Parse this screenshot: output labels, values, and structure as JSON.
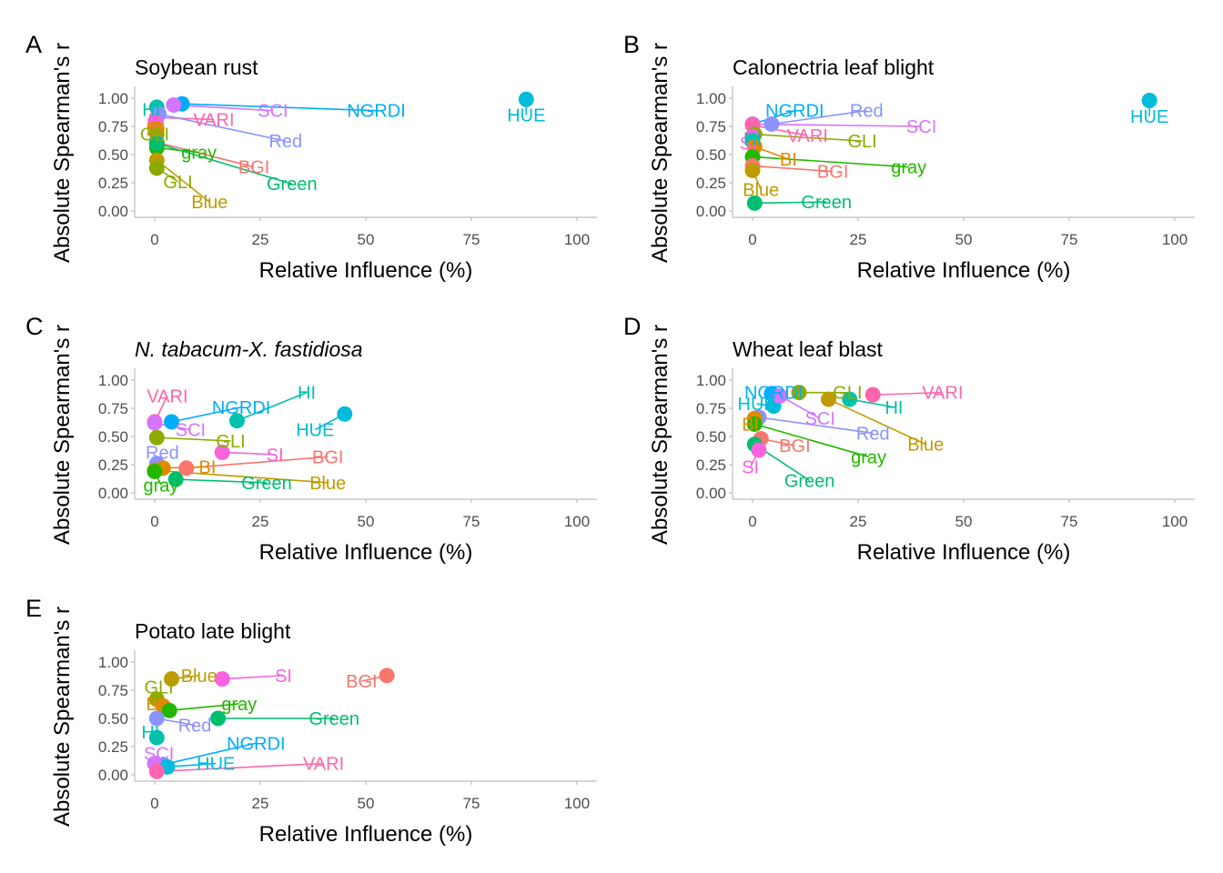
{
  "figure": {
    "xlabel": "Relative Influence (%)",
    "ylabel": "Absolute Spearman's r"
  },
  "palette": {
    "BGI": "#F8766D",
    "BI": "#E18A00",
    "Blue": "#BE9C00",
    "GLI": "#8CAB00",
    "gray": "#24B700",
    "Green": "#00BE70",
    "HI": "#00C1AB",
    "HUE": "#00BBDA",
    "NGRDI": "#00ACFC",
    "Red": "#8B93FF",
    "SCI": "#D575FE",
    "SI": "#F962DD",
    "VARI": "#FF65AC"
  },
  "chart_data": [
    {
      "panel": "A",
      "title": "Soybean rust",
      "italic": false,
      "type": "scatter",
      "xlabel": "Relative Influence (%)",
      "ylabel": "Absolute Spearman's r",
      "xlim": [
        0,
        100
      ],
      "ylim": [
        0,
        1
      ],
      "xticks": [
        "0",
        "25",
        "50",
        "75",
        "100"
      ],
      "yticks": [
        "0.00",
        "0.25",
        "0.50",
        "0.75",
        "1.00"
      ],
      "points": [
        {
          "label": "HUE",
          "x": 88.0,
          "y": 0.99,
          "lx": 88.0,
          "ly": 0.85
        },
        {
          "label": "NGRDI",
          "x": 6.5,
          "y": 0.95,
          "lx": 52.5,
          "ly": 0.89
        },
        {
          "label": "SCI",
          "x": 4.5,
          "y": 0.94,
          "lx": 28.0,
          "ly": 0.89
        },
        {
          "label": "HI",
          "x": 0.5,
          "y": 0.92,
          "lx": -0.8,
          "ly": 0.9
        },
        {
          "label": "VARI",
          "x": 0.5,
          "y": 0.83,
          "lx": 14.0,
          "ly": 0.81
        },
        {
          "label": "Red",
          "x": 1.0,
          "y": 0.86,
          "lx": 31.0,
          "ly": 0.62
        },
        {
          "label": "SI",
          "x": 0.3,
          "y": 0.78,
          "lx": 0.0,
          "ly": 0.78
        },
        {
          "label": "BI",
          "x": 0.5,
          "y": 0.73,
          "lx": 0.0,
          "ly": 0.73
        },
        {
          "label": "GLI",
          "x": 0.5,
          "y": 0.68,
          "lx": 0.0,
          "ly": 0.68
        },
        {
          "label": "BGI",
          "x": 0.5,
          "y": 0.61,
          "lx": 23.5,
          "ly": 0.39
        },
        {
          "label": "gray",
          "x": 0.5,
          "y": 0.56,
          "lx": 10.5,
          "ly": 0.52
        },
        {
          "label": "Green",
          "x": 0.5,
          "y": 0.6,
          "lx": 32.5,
          "ly": 0.24
        },
        {
          "label": "Blue",
          "x": 0.5,
          "y": 0.45,
          "lx": 13.0,
          "ly": 0.08
        },
        {
          "label": "GLI",
          "x": 0.5,
          "y": 0.38,
          "lx": 5.5,
          "ly": 0.26
        }
      ]
    },
    {
      "panel": "B",
      "title": "Calonectria leaf blight",
      "italic": false,
      "type": "scatter",
      "xlabel": "Relative Influence (%)",
      "ylabel": "Absolute Spearman's r",
      "xlim": [
        0,
        100
      ],
      "ylim": [
        0,
        1
      ],
      "xticks": [
        "0",
        "25",
        "50",
        "75",
        "100"
      ],
      "yticks": [
        "0.00",
        "0.25",
        "0.50",
        "0.75",
        "1.00"
      ],
      "points": [
        {
          "label": "HUE",
          "x": 94.0,
          "y": 0.98,
          "lx": 94.0,
          "ly": 0.84
        },
        {
          "label": "NGRDI",
          "x": 0.0,
          "y": 0.77,
          "lx": 10.0,
          "ly": 0.89
        },
        {
          "label": "Red",
          "x": 4.5,
          "y": 0.77,
          "lx": 27.0,
          "ly": 0.89
        },
        {
          "label": "SCI",
          "x": 0.0,
          "y": 0.77,
          "lx": 40.0,
          "ly": 0.75
        },
        {
          "label": "VARI",
          "x": 0.0,
          "y": 0.76,
          "lx": 13.0,
          "ly": 0.67
        },
        {
          "label": "GLI",
          "x": 0.5,
          "y": 0.68,
          "lx": 26.0,
          "ly": 0.62
        },
        {
          "label": "SI",
          "x": 0.0,
          "y": 0.66,
          "lx": -1.0,
          "ly": 0.6
        },
        {
          "label": "HI",
          "x": 0.0,
          "y": 0.62,
          "lx": 0.0,
          "ly": 0.64
        },
        {
          "label": "BI",
          "x": 0.5,
          "y": 0.57,
          "lx": 8.5,
          "ly": 0.46
        },
        {
          "label": "gray",
          "x": 0.0,
          "y": 0.48,
          "lx": 37.0,
          "ly": 0.39
        },
        {
          "label": "BGI",
          "x": 0.0,
          "y": 0.4,
          "lx": 19.0,
          "ly": 0.35
        },
        {
          "label": "Blue",
          "x": 0.0,
          "y": 0.36,
          "lx": 2.0,
          "ly": 0.19
        },
        {
          "label": "Green",
          "x": 0.5,
          "y": 0.07,
          "lx": 17.5,
          "ly": 0.08
        }
      ]
    },
    {
      "panel": "C",
      "title": "N. tabacum-X. fastidiosa",
      "italic": true,
      "type": "scatter",
      "xlabel": "Relative Influence (%)",
      "ylabel": "Absolute Spearman's r",
      "xlim": [
        0,
        100
      ],
      "ylim": [
        0,
        1
      ],
      "xticks": [
        "0",
        "25",
        "50",
        "75",
        "100"
      ],
      "yticks": [
        "0.00",
        "0.25",
        "0.50",
        "0.75",
        "1.00"
      ],
      "points": [
        {
          "label": "HUE",
          "x": 45.0,
          "y": 0.7,
          "lx": 38.0,
          "ly": 0.56
        },
        {
          "label": "HI",
          "x": 19.5,
          "y": 0.64,
          "lx": 36.0,
          "ly": 0.89
        },
        {
          "label": "NGRDI",
          "x": 4.0,
          "y": 0.63,
          "lx": 20.5,
          "ly": 0.76
        },
        {
          "label": "VARI",
          "x": 0.0,
          "y": 0.63,
          "lx": 3.0,
          "ly": 0.86
        },
        {
          "label": "SCI",
          "x": 0.0,
          "y": 0.62,
          "lx": 8.5,
          "ly": 0.56
        },
        {
          "label": "GLI",
          "x": 0.5,
          "y": 0.49,
          "lx": 18.0,
          "ly": 0.46
        },
        {
          "label": "SI",
          "x": 16.0,
          "y": 0.36,
          "lx": 28.5,
          "ly": 0.34
        },
        {
          "label": "BGI",
          "x": 7.5,
          "y": 0.22,
          "lx": 41.0,
          "ly": 0.32
        },
        {
          "label": "Red",
          "x": 0.5,
          "y": 0.26,
          "lx": 1.8,
          "ly": 0.36
        },
        {
          "label": "BI",
          "x": 2.0,
          "y": 0.22,
          "lx": 12.5,
          "ly": 0.23
        },
        {
          "label": "Blue",
          "x": 0.0,
          "y": 0.2,
          "lx": 41.0,
          "ly": 0.09
        },
        {
          "label": "Green",
          "x": 5.0,
          "y": 0.12,
          "lx": 26.5,
          "ly": 0.09
        },
        {
          "label": "gray",
          "x": 0.0,
          "y": 0.19,
          "lx": 1.5,
          "ly": 0.07
        }
      ]
    },
    {
      "panel": "D",
      "title": "Wheat leaf blast",
      "italic": false,
      "type": "scatter",
      "xlabel": "Relative Influence (%)",
      "ylabel": "Absolute Spearman's r",
      "xlim": [
        0,
        100
      ],
      "ylim": [
        0,
        1
      ],
      "xticks": [
        "0",
        "25",
        "50",
        "75",
        "100"
      ],
      "yticks": [
        "0.00",
        "0.25",
        "0.50",
        "0.75",
        "1.00"
      ],
      "points": [
        {
          "label": "VARI",
          "x": 28.5,
          "y": 0.87,
          "lx": 45.0,
          "ly": 0.89
        },
        {
          "label": "GLI",
          "x": 11.0,
          "y": 0.89,
          "lx": 22.5,
          "ly": 0.89
        },
        {
          "label": "NGRDI",
          "x": 4.5,
          "y": 0.88,
          "lx": 5.0,
          "ly": 0.89
        },
        {
          "label": "HI",
          "x": 23.0,
          "y": 0.83,
          "lx": 33.5,
          "ly": 0.76
        },
        {
          "label": "Blue",
          "x": 18.0,
          "y": 0.83,
          "lx": 41.0,
          "ly": 0.43
        },
        {
          "label": "HUE",
          "x": 5.0,
          "y": 0.77,
          "lx": 1.0,
          "ly": 0.79
        },
        {
          "label": "SCI",
          "x": 6.5,
          "y": 0.86,
          "lx": 16.0,
          "ly": 0.66
        },
        {
          "label": "Red",
          "x": 1.5,
          "y": 0.67,
          "lx": 28.5,
          "ly": 0.53
        },
        {
          "label": "BI",
          "x": 0.5,
          "y": 0.66,
          "lx": -0.5,
          "ly": 0.61
        },
        {
          "label": "gray",
          "x": 0.5,
          "y": 0.61,
          "lx": 27.5,
          "ly": 0.32
        },
        {
          "label": "BGI",
          "x": 2.0,
          "y": 0.48,
          "lx": 10.0,
          "ly": 0.42
        },
        {
          "label": "Green",
          "x": 0.5,
          "y": 0.43,
          "lx": 13.5,
          "ly": 0.11
        },
        {
          "label": "SI",
          "x": 1.5,
          "y": 0.38,
          "lx": -0.5,
          "ly": 0.23
        }
      ]
    },
    {
      "panel": "E",
      "title": "Potato late blight",
      "italic": false,
      "type": "scatter",
      "xlabel": "Relative Influence (%)",
      "ylabel": "Absolute Spearman's r",
      "xlim": [
        0,
        100
      ],
      "ylim": [
        0,
        1
      ],
      "xticks": [
        "0",
        "25",
        "50",
        "75",
        "100"
      ],
      "yticks": [
        "0.00",
        "0.25",
        "0.50",
        "0.75",
        "1.00"
      ],
      "points": [
        {
          "label": "BGI",
          "x": 55.0,
          "y": 0.88,
          "lx": 49.0,
          "ly": 0.83
        },
        {
          "label": "SI",
          "x": 16.0,
          "y": 0.85,
          "lx": 30.5,
          "ly": 0.88
        },
        {
          "label": "Blue",
          "x": 4.0,
          "y": 0.85,
          "lx": 10.5,
          "ly": 0.88
        },
        {
          "label": "GLI",
          "x": 0.5,
          "y": 0.67,
          "lx": 1.0,
          "ly": 0.78
        },
        {
          "label": "BI",
          "x": 2.0,
          "y": 0.61,
          "lx": 0.0,
          "ly": 0.63
        },
        {
          "label": "gray",
          "x": 3.5,
          "y": 0.57,
          "lx": 20.0,
          "ly": 0.63
        },
        {
          "label": "Green",
          "x": 15.0,
          "y": 0.5,
          "lx": 42.5,
          "ly": 0.5
        },
        {
          "label": "Red",
          "x": 0.5,
          "y": 0.5,
          "lx": 9.5,
          "ly": 0.44
        },
        {
          "label": "HI",
          "x": 0.5,
          "y": 0.33,
          "lx": -1.0,
          "ly": 0.38
        },
        {
          "label": "NGRDI",
          "x": 2.0,
          "y": 0.09,
          "lx": 24.0,
          "ly": 0.28
        },
        {
          "label": "SCI",
          "x": 0.0,
          "y": 0.1,
          "lx": 1.0,
          "ly": 0.19
        },
        {
          "label": "HUE",
          "x": 3.0,
          "y": 0.07,
          "lx": 14.5,
          "ly": 0.1
        },
        {
          "label": "VARI",
          "x": 0.5,
          "y": 0.03,
          "lx": 40.0,
          "ly": 0.1
        }
      ]
    }
  ]
}
